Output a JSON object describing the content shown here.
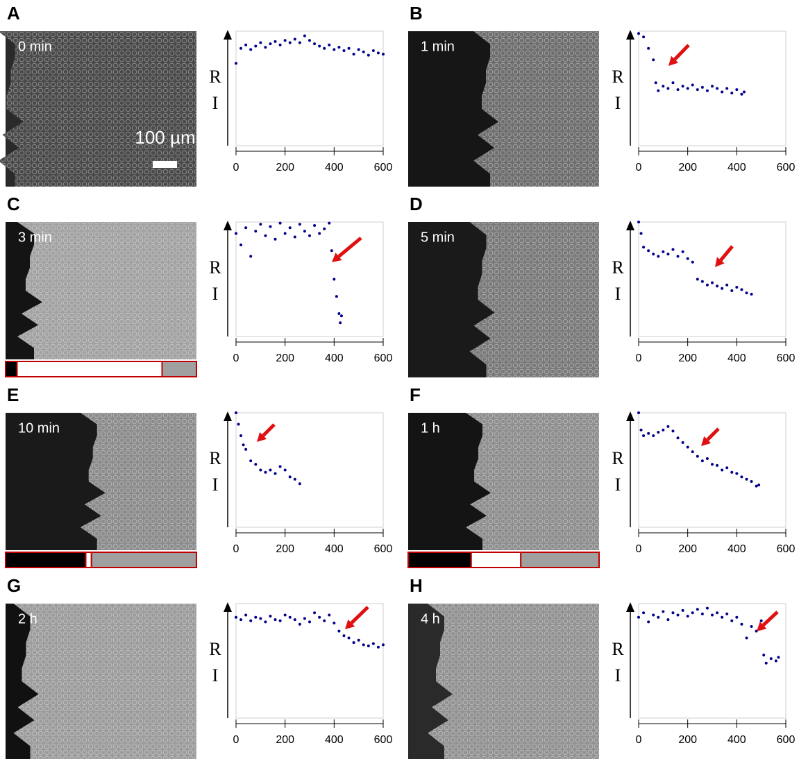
{
  "chart_data": [
    {
      "type": "scatter",
      "panel": "A",
      "label": "0 min",
      "scale_bar": "100 µm",
      "color": "#00008b",
      "xlim": [
        0,
        600
      ],
      "xticks": [
        0,
        200,
        400,
        600
      ],
      "ylim": [
        0,
        100
      ],
      "ylabel": [
        "R",
        "I"
      ],
      "x": [
        0,
        20,
        40,
        60,
        80,
        100,
        120,
        140,
        160,
        180,
        200,
        220,
        240,
        260,
        280,
        300,
        320,
        340,
        360,
        380,
        400,
        420,
        440,
        460,
        480,
        500,
        520,
        540,
        560,
        580,
        600
      ],
      "values": [
        72,
        85,
        88,
        84,
        87,
        90,
        86,
        89,
        91,
        88,
        92,
        90,
        93,
        90,
        96,
        92,
        89,
        87,
        85,
        88,
        84,
        86,
        83,
        85,
        80,
        84,
        82,
        79,
        83,
        81,
        80
      ]
    },
    {
      "type": "scatter",
      "panel": "B",
      "label": "1 min",
      "color": "#00008b",
      "xlim": [
        0,
        600
      ],
      "xticks": [
        0,
        200,
        400,
        600
      ],
      "ylim": [
        0,
        100
      ],
      "ylabel": [
        "R",
        "I"
      ],
      "x": [
        0,
        20,
        40,
        60,
        70,
        80,
        100,
        120,
        140,
        160,
        180,
        200,
        220,
        240,
        260,
        280,
        300,
        320,
        340,
        360,
        380,
        400,
        420,
        430
      ],
      "values": [
        98,
        95,
        85,
        75,
        55,
        48,
        52,
        50,
        55,
        49,
        52,
        50,
        53,
        49,
        51,
        48,
        52,
        50,
        47,
        50,
        46,
        49,
        45,
        47
      ]
    },
    {
      "type": "scatter",
      "panel": "C",
      "label": "3 min",
      "color": "#00008b",
      "xlim": [
        0,
        600
      ],
      "xticks": [
        0,
        200,
        400,
        600
      ],
      "ylim": [
        0,
        100
      ],
      "ylabel": [
        "R",
        "I"
      ],
      "x": [
        0,
        20,
        40,
        60,
        80,
        100,
        120,
        140,
        160,
        180,
        200,
        220,
        240,
        260,
        280,
        300,
        320,
        340,
        360,
        380,
        390,
        400,
        410,
        420,
        425,
        430
      ],
      "values": [
        90,
        80,
        95,
        70,
        92,
        98,
        88,
        96,
        85,
        99,
        90,
        95,
        87,
        98,
        92,
        88,
        97,
        90,
        94,
        99,
        75,
        50,
        35,
        20,
        12,
        18
      ],
      "strip": {
        "colors": [
          "#000000",
          "#ffffff",
          "#a0a0a0"
        ],
        "values": [
          6,
          76,
          18
        ]
      }
    },
    {
      "type": "scatter",
      "panel": "D",
      "label": "5 min",
      "color": "#00008b",
      "xlim": [
        0,
        600
      ],
      "xticks": [
        0,
        200,
        400,
        600
      ],
      "ylim": [
        0,
        100
      ],
      "ylabel": [
        "R",
        "I"
      ],
      "x": [
        0,
        10,
        20,
        40,
        60,
        80,
        100,
        120,
        140,
        160,
        180,
        200,
        220,
        240,
        260,
        280,
        300,
        320,
        340,
        360,
        380,
        400,
        420,
        440,
        460
      ],
      "values": [
        100,
        90,
        78,
        75,
        72,
        70,
        74,
        72,
        76,
        70,
        74,
        68,
        65,
        50,
        48,
        45,
        47,
        44,
        42,
        45,
        40,
        43,
        41,
        38,
        37
      ]
    },
    {
      "type": "scatter",
      "panel": "E",
      "label": "10 min",
      "color": "#00008b",
      "xlim": [
        0,
        600
      ],
      "xticks": [
        0,
        200,
        400,
        600
      ],
      "ylim": [
        0,
        100
      ],
      "ylabel": [
        "R",
        "I"
      ],
      "x": [
        0,
        10,
        20,
        30,
        40,
        60,
        80,
        100,
        120,
        140,
        160,
        180,
        200,
        220,
        240,
        260
      ],
      "values": [
        100,
        90,
        80,
        72,
        68,
        58,
        55,
        50,
        48,
        50,
        47,
        53,
        50,
        44,
        42,
        38
      ],
      "strip": {
        "colors": [
          "#000000",
          "#ffffff",
          "#a0a0a0"
        ],
        "values": [
          42,
          3,
          55
        ]
      }
    },
    {
      "type": "scatter",
      "panel": "F",
      "label": "1 h",
      "color": "#00008b",
      "xlim": [
        0,
        600
      ],
      "xticks": [
        0,
        200,
        400,
        600
      ],
      "ylim": [
        0,
        100
      ],
      "ylabel": [
        "R",
        "I"
      ],
      "x": [
        0,
        10,
        20,
        40,
        60,
        80,
        100,
        120,
        140,
        160,
        180,
        200,
        220,
        240,
        260,
        280,
        300,
        320,
        340,
        360,
        380,
        400,
        420,
        440,
        460,
        480,
        490
      ],
      "values": [
        100,
        85,
        80,
        82,
        80,
        83,
        85,
        88,
        84,
        78,
        74,
        70,
        66,
        62,
        58,
        60,
        55,
        54,
        50,
        52,
        48,
        47,
        44,
        42,
        40,
        36,
        37
      ],
      "strip": {
        "colors": [
          "#000000",
          "#ffffff",
          "#a0a0a0"
        ],
        "values": [
          33,
          26,
          41
        ]
      }
    },
    {
      "type": "scatter",
      "panel": "G",
      "label": "2 h",
      "color": "#00008b",
      "xlim": [
        0,
        600
      ],
      "xticks": [
        0,
        200,
        400,
        600
      ],
      "ylim": [
        0,
        100
      ],
      "ylabel": [
        "R",
        "I"
      ],
      "x": [
        0,
        20,
        40,
        60,
        80,
        100,
        120,
        140,
        160,
        180,
        200,
        220,
        240,
        260,
        280,
        300,
        320,
        340,
        360,
        380,
        400,
        420,
        440,
        460,
        480,
        500,
        520,
        540,
        560,
        580,
        600
      ],
      "values": [
        88,
        86,
        90,
        85,
        88,
        87,
        84,
        89,
        86,
        85,
        90,
        88,
        86,
        82,
        87,
        84,
        92,
        88,
        85,
        90,
        83,
        76,
        72,
        70,
        66,
        68,
        64,
        63,
        65,
        62,
        64
      ]
    },
    {
      "type": "scatter",
      "panel": "H",
      "label": "4 h",
      "color": "#00008b",
      "xlim": [
        0,
        600
      ],
      "xticks": [
        0,
        200,
        400,
        600
      ],
      "ylim": [
        0,
        100
      ],
      "ylabel": [
        "R",
        "I"
      ],
      "x": [
        0,
        20,
        40,
        60,
        80,
        100,
        120,
        140,
        160,
        180,
        200,
        220,
        240,
        260,
        280,
        300,
        320,
        340,
        360,
        380,
        400,
        420,
        440,
        460,
        480,
        500,
        510,
        520,
        540,
        560,
        570
      ],
      "values": [
        88,
        92,
        84,
        90,
        88,
        93,
        86,
        92,
        90,
        94,
        89,
        92,
        95,
        91,
        96,
        90,
        92,
        88,
        91,
        85,
        88,
        82,
        70,
        80,
        76,
        85,
        55,
        48,
        52,
        50,
        53
      ]
    }
  ]
}
